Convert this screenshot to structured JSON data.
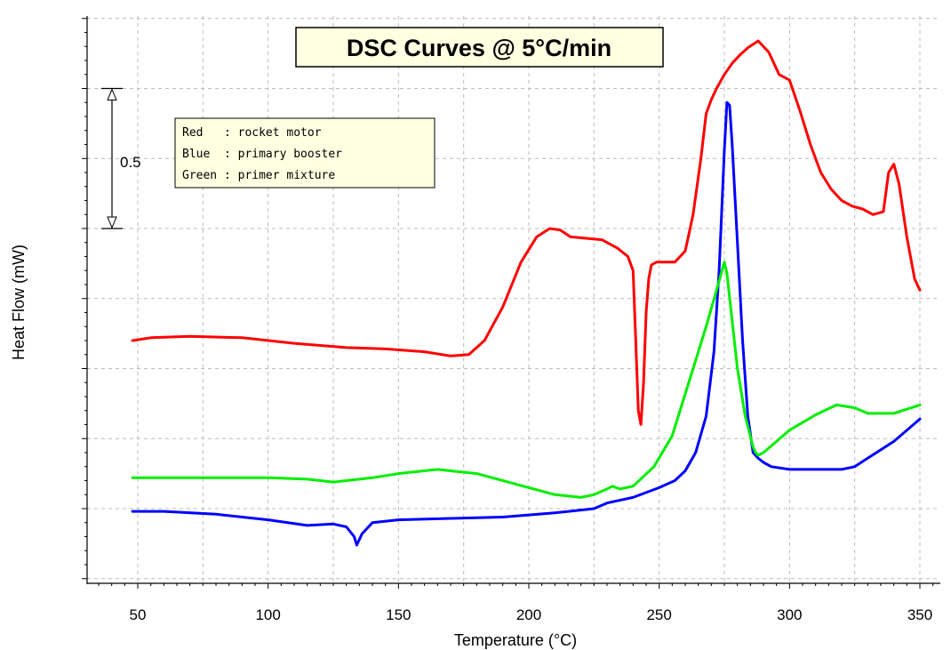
{
  "chart_data": {
    "type": "line",
    "title": "DSC Curves @ 5°C/min",
    "xlabel": "Temperature (°C)",
    "ylabel": "Heat Flow (mW)",
    "xlim": [
      30,
      358
    ],
    "ylim": [
      0.55,
      3.0
    ],
    "xticks": [
      50,
      100,
      150,
      200,
      250,
      300,
      350
    ],
    "grid": true,
    "scale_bar": {
      "label": "0.5",
      "value": 0.5,
      "from": 2.5,
      "to": 2.0
    },
    "legend": {
      "placement": "top-left",
      "entries": [
        "Red   : rocket motor",
        "Blue  : primary booster",
        "Green : primer mixture"
      ]
    },
    "colors": {
      "red": "#ff0000",
      "blue": "#0000ff",
      "green": "#00ee00",
      "grid": "#bbbbbb",
      "title_bg": "#ffffe1"
    },
    "series": [
      {
        "name": "Red",
        "color": "#ff0000",
        "x": [
          48,
          55,
          70,
          90,
          110,
          130,
          145,
          160,
          170,
          177,
          183,
          190,
          197,
          203,
          208,
          212,
          216,
          222,
          228,
          234,
          238,
          240,
          241,
          242,
          243,
          244,
          245,
          246,
          247,
          249,
          252,
          256,
          260,
          263,
          266,
          268,
          270,
          272,
          275,
          278,
          281,
          284,
          288,
          292,
          296,
          300,
          304,
          308,
          312,
          316,
          320,
          324,
          328,
          332,
          336,
          338,
          340,
          342,
          345,
          348,
          350
        ],
        "y": [
          1.6,
          1.61,
          1.615,
          1.61,
          1.59,
          1.575,
          1.57,
          1.56,
          1.545,
          1.55,
          1.6,
          1.72,
          1.88,
          1.97,
          2.0,
          1.995,
          1.97,
          1.965,
          1.96,
          1.93,
          1.9,
          1.85,
          1.6,
          1.35,
          1.3,
          1.45,
          1.7,
          1.82,
          1.87,
          1.88,
          1.88,
          1.88,
          1.92,
          2.05,
          2.25,
          2.41,
          2.46,
          2.5,
          2.55,
          2.59,
          2.62,
          2.645,
          2.67,
          2.63,
          2.55,
          2.53,
          2.42,
          2.3,
          2.2,
          2.14,
          2.1,
          2.08,
          2.07,
          2.05,
          2.06,
          2.2,
          2.23,
          2.16,
          1.97,
          1.82,
          1.78
        ]
      },
      {
        "name": "Blue",
        "color": "#0000ff",
        "x": [
          48,
          60,
          80,
          100,
          115,
          125,
          130,
          133,
          134,
          136,
          140,
          150,
          170,
          190,
          210,
          220,
          225,
          230,
          240,
          250,
          256,
          260,
          264,
          268,
          271,
          273,
          275,
          276,
          277,
          278,
          280,
          282,
          284,
          286,
          288,
          290,
          293,
          300,
          310,
          320,
          325,
          330,
          340,
          350
        ],
        "y": [
          0.99,
          0.99,
          0.98,
          0.96,
          0.94,
          0.945,
          0.935,
          0.9,
          0.87,
          0.91,
          0.95,
          0.96,
          0.965,
          0.97,
          0.985,
          0.995,
          1.0,
          1.02,
          1.04,
          1.075,
          1.1,
          1.135,
          1.2,
          1.33,
          1.56,
          1.85,
          2.28,
          2.45,
          2.44,
          2.3,
          1.95,
          1.6,
          1.33,
          1.2,
          1.18,
          1.165,
          1.15,
          1.14,
          1.14,
          1.14,
          1.15,
          1.18,
          1.24,
          1.32
        ]
      },
      {
        "name": "Green",
        "color": "#00ee00",
        "x": [
          48,
          60,
          80,
          100,
          115,
          120,
          125,
          130,
          140,
          150,
          165,
          180,
          200,
          210,
          220,
          225,
          230,
          232,
          235,
          240,
          248,
          255,
          262,
          268,
          272,
          275,
          276,
          278,
          280,
          283,
          286,
          287,
          288,
          290,
          295,
          300,
          310,
          318,
          325,
          330,
          340,
          350
        ],
        "y": [
          1.11,
          1.11,
          1.11,
          1.11,
          1.105,
          1.1,
          1.095,
          1.1,
          1.11,
          1.125,
          1.14,
          1.125,
          1.075,
          1.05,
          1.04,
          1.05,
          1.07,
          1.08,
          1.07,
          1.08,
          1.15,
          1.26,
          1.47,
          1.65,
          1.78,
          1.88,
          1.84,
          1.67,
          1.5,
          1.33,
          1.22,
          1.2,
          1.19,
          1.2,
          1.24,
          1.28,
          1.335,
          1.37,
          1.36,
          1.34,
          1.34,
          1.37
        ]
      }
    ]
  }
}
